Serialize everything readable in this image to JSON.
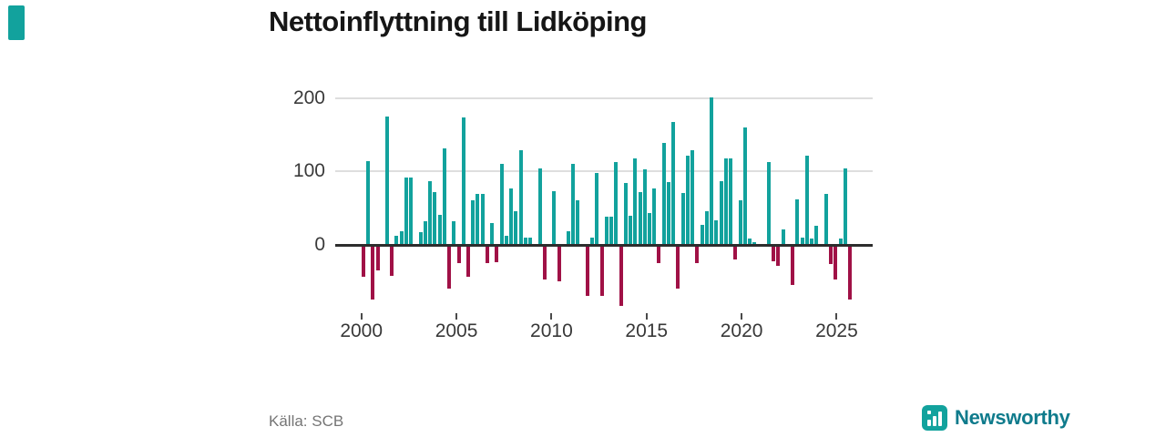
{
  "page": {
    "title": "Nettoinflyttning till Lidköping",
    "source": "Källa: SCB"
  },
  "branding": {
    "wordmark": "Newsworthy",
    "icon": "bar-chart-icon",
    "mark_color": "#12a29d",
    "wordmark_color": "#0f7b8c"
  },
  "colors": {
    "positive_bar": "#12a29d",
    "negative_bar": "#a01146",
    "gridline": "#dedede",
    "zero_line": "#2d2d2d",
    "axis_label": "#3a3a3a",
    "source_text": "#757575",
    "title_text": "#161616",
    "background": "#ffffff"
  },
  "chart_data": {
    "type": "bar",
    "title": "Nettoinflyttning till Lidköping",
    "frequency": "quarterly",
    "start_period": "2000-Q1",
    "end_period": "2025-Q3",
    "y_ticks": [
      200,
      100,
      0
    ],
    "x_ticks": [
      2000,
      2005,
      2010,
      2015,
      2020,
      2025
    ],
    "ylim": [
      -90,
      210
    ],
    "grid": "horizontal-only",
    "legend": "none",
    "series_by_year": {
      "2000": [
        -42,
        113,
        -73,
        -33
      ],
      "2001": [
        0,
        173,
        -40,
        11
      ],
      "2002": [
        17,
        90,
        90,
        0
      ],
      "2003": [
        16,
        31,
        85,
        71
      ],
      "2004": [
        40,
        130,
        -57,
        31
      ],
      "2005": [
        -23,
        172,
        -42,
        59
      ],
      "2006": [
        68,
        68,
        -23,
        28
      ],
      "2007": [
        -22,
        109,
        11,
        75
      ],
      "2008": [
        44,
        127,
        9,
        9
      ],
      "2009": [
        0,
        103,
        -45,
        0
      ],
      "2010": [
        72,
        -48,
        0,
        17
      ],
      "2011": [
        109,
        59,
        0,
        -67
      ],
      "2012": [
        9,
        97,
        -67,
        37
      ],
      "2013": [
        37,
        112,
        -81,
        83
      ],
      "2014": [
        38,
        117,
        71,
        102
      ],
      "2015": [
        42,
        75,
        -23,
        137
      ],
      "2016": [
        84,
        166,
        -58,
        69
      ],
      "2017": [
        120,
        128,
        -23,
        26
      ],
      "2018": [
        44,
        200,
        32,
        86
      ],
      "2019": [
        117,
        116,
        -18,
        59
      ],
      "2020": [
        158,
        7,
        3,
        0
      ],
      "2021": [
        0,
        111,
        -20,
        -27
      ],
      "2022": [
        20,
        0,
        -53,
        61
      ],
      "2023": [
        9,
        120,
        7,
        25
      ],
      "2024": [
        0,
        68,
        -24,
        -45
      ],
      "2025": [
        7,
        103,
        -73
      ]
    }
  }
}
